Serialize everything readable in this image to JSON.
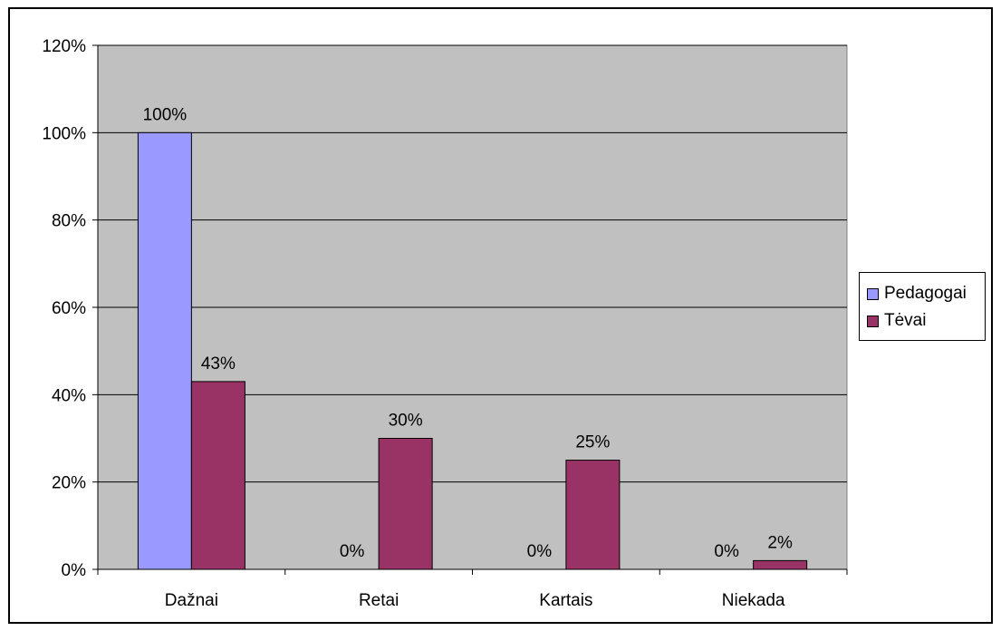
{
  "chart_data": {
    "type": "bar",
    "categories": [
      "Dažnai",
      "Retai",
      "Kartais",
      "Niekada"
    ],
    "series": [
      {
        "name": "Pedagogai",
        "values": [
          100,
          0,
          0,
          0
        ],
        "color": "#9999ff",
        "labels": [
          "100%",
          "0%",
          "0%",
          "0%"
        ]
      },
      {
        "name": "Tėvai",
        "values": [
          43,
          30,
          25,
          2
        ],
        "color": "#993366",
        "labels": [
          "43%",
          "30%",
          "25%",
          "2%"
        ]
      }
    ],
    "ylim": [
      0,
      120
    ],
    "yticks": [
      "0%",
      "20%",
      "40%",
      "60%",
      "80%",
      "100%",
      "120%"
    ],
    "grid": true,
    "plot_background": "#c0c0c0",
    "legend_position": "right",
    "title": "",
    "xlabel": "",
    "ylabel": ""
  }
}
